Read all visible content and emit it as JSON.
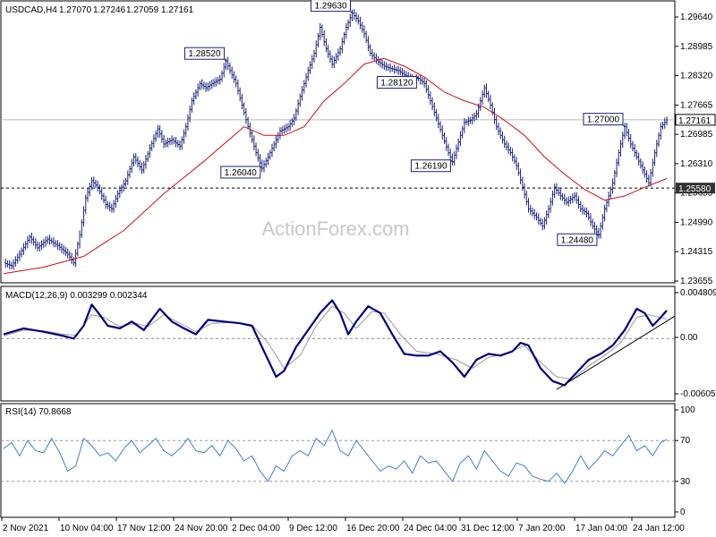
{
  "chart_data": [
    {
      "type": "candlestick",
      "title": "USDCAD,H4",
      "ohlc": [
        "1.27070",
        "1.27246",
        "1.27059",
        "1.27161"
      ],
      "watermark": "ActionForex.com",
      "y_ticks": [
        "1.29640",
        "1.28985",
        "1.28320",
        "1.27665",
        "1.26985",
        "1.26310",
        "1.25655",
        "1.24990",
        "1.24315",
        "1.23655"
      ],
      "ylim": [
        1.2345,
        1.2985
      ],
      "x_ticks": [
        "2 Nov 2021",
        "10 Nov 04:00",
        "17 Nov 12:00",
        "24 Nov 20:00",
        "2 Dec 04:00",
        "9 Dec 12:00",
        "16 Dec 20:00",
        "24 Dec 04:00",
        "31 Dec 12:00",
        "7 Jan 20:00",
        "17 Jan 04:00",
        "24 Jan 12:00"
      ],
      "current_price": "1.27161",
      "horizontal_line_label": "1.25580",
      "horizontal_line_value": 1.2558,
      "price_path": [
        [
          0,
          1.2385
        ],
        [
          4,
          1.2378
        ],
        [
          8,
          1.2405
        ],
        [
          13,
          1.2445
        ],
        [
          17,
          1.242
        ],
        [
          22,
          1.244
        ],
        [
          27,
          1.2425
        ],
        [
          32,
          1.2405
        ],
        [
          35,
          1.2385
        ],
        [
          38,
          1.245
        ],
        [
          41,
          1.2535
        ],
        [
          44,
          1.2575
        ],
        [
          47,
          1.256
        ],
        [
          51,
          1.252
        ],
        [
          54,
          1.251
        ],
        [
          57,
          1.2545
        ],
        [
          61,
          1.2575
        ],
        [
          65,
          1.263
        ],
        [
          69,
          1.26
        ],
        [
          73,
          1.265
        ],
        [
          77,
          1.2695
        ],
        [
          80,
          1.266
        ],
        [
          84,
          1.267
        ],
        [
          88,
          1.2655
        ],
        [
          91,
          1.27
        ],
        [
          94,
          1.276
        ],
        [
          98,
          1.28
        ],
        [
          101,
          1.279
        ],
        [
          104,
          1.28
        ],
        [
          108,
          1.281
        ],
        [
          111,
          1.2852
        ],
        [
          113,
          1.283
        ],
        [
          116,
          1.28
        ],
        [
          119,
          1.275
        ],
        [
          122,
          1.27
        ],
        [
          126,
          1.264
        ],
        [
          129,
          1.2604
        ],
        [
          132,
          1.263
        ],
        [
          135,
          1.266
        ],
        [
          138,
          1.269
        ],
        [
          142,
          1.27
        ],
        [
          145,
          1.272
        ],
        [
          148,
          1.277
        ],
        [
          152,
          1.283
        ],
        [
          155,
          1.287
        ],
        [
          158,
          1.293
        ],
        [
          161,
          1.288
        ],
        [
          164,
          1.2845
        ],
        [
          168,
          1.288
        ],
        [
          171,
          1.293
        ],
        [
          174,
          1.2963
        ],
        [
          177,
          1.2945
        ],
        [
          180,
          1.2915
        ],
        [
          183,
          1.287
        ],
        [
          187,
          1.285
        ],
        [
          190,
          1.284
        ],
        [
          193,
          1.2835
        ],
        [
          197,
          1.283
        ],
        [
          200,
          1.282
        ],
        [
          204,
          1.281
        ],
        [
          207,
          1.2812
        ],
        [
          210,
          1.28
        ],
        [
          213,
          1.276
        ],
        [
          216,
          1.272
        ],
        [
          219,
          1.268
        ],
        [
          222,
          1.264
        ],
        [
          224,
          1.2619
        ],
        [
          227,
          1.2665
        ],
        [
          230,
          1.271
        ],
        [
          233,
          1.2715
        ],
        [
          236,
          1.273
        ],
        [
          240,
          1.279
        ],
        [
          243,
          1.275
        ],
        [
          246,
          1.27
        ],
        [
          250,
          1.266
        ],
        [
          253,
          1.264
        ],
        [
          256,
          1.261
        ],
        [
          259,
          1.256
        ],
        [
          262,
          1.251
        ],
        [
          266,
          1.249
        ],
        [
          269,
          1.247
        ],
        [
          272,
          1.251
        ],
        [
          275,
          1.256
        ],
        [
          278,
          1.254
        ],
        [
          281,
          1.2525
        ],
        [
          285,
          1.254
        ],
        [
          288,
          1.251
        ],
        [
          291,
          1.25
        ],
        [
          294,
          1.247
        ],
        [
          297,
          1.245
        ],
        [
          300,
          1.251
        ],
        [
          304,
          1.257
        ],
        [
          307,
          1.264
        ],
        [
          310,
          1.27
        ],
        [
          313,
          1.266
        ],
        [
          316,
          1.263
        ],
        [
          319,
          1.26
        ],
        [
          322,
          1.257
        ],
        [
          325,
          1.264
        ],
        [
          328,
          1.27
        ],
        [
          331,
          1.2716
        ]
      ],
      "ma_path": [
        [
          0,
          1.236
        ],
        [
          20,
          1.2375
        ],
        [
          40,
          1.24
        ],
        [
          60,
          1.246
        ],
        [
          80,
          1.2545
        ],
        [
          100,
          1.262
        ],
        [
          120,
          1.27
        ],
        [
          130,
          1.268
        ],
        [
          140,
          1.268
        ],
        [
          150,
          1.27
        ],
        [
          160,
          1.276
        ],
        [
          170,
          1.28
        ],
        [
          180,
          1.2845
        ],
        [
          190,
          1.2858
        ],
        [
          200,
          1.284
        ],
        [
          210,
          1.2815
        ],
        [
          220,
          1.278
        ],
        [
          230,
          1.276
        ],
        [
          240,
          1.2745
        ],
        [
          250,
          1.2715
        ],
        [
          260,
          1.268
        ],
        [
          270,
          1.263
        ],
        [
          280,
          1.259
        ],
        [
          290,
          1.2555
        ],
        [
          300,
          1.253
        ],
        [
          310,
          1.254
        ],
        [
          320,
          1.256
        ],
        [
          331,
          1.258
        ]
      ],
      "annotations": [
        {
          "label": "1.28520",
          "x": 111,
          "value": 1.2852
        },
        {
          "label": "1.26040",
          "x": 129,
          "value": 1.2604
        },
        {
          "label": "1.29630",
          "x": 174,
          "value": 1.2963
        },
        {
          "label": "1.28120",
          "x": 207,
          "value": 1.2812
        },
        {
          "label": "1.26190",
          "x": 224,
          "value": 1.2619
        },
        {
          "label": "1.24480",
          "x": 297,
          "value": 1.2448
        },
        {
          "label": "1.27000",
          "x": 310,
          "value": 1.27
        }
      ],
      "color_up": "#1a237e",
      "color_ma": "#cc1111",
      "color_line_price": "#aaaaaa"
    },
    {
      "type": "line",
      "title": "MACD(12,26,9) 0.003299 0.002344",
      "y_ticks": [
        "0.004809",
        "0.00",
        "-0.00605"
      ],
      "ylim": [
        -0.0065,
        0.0054
      ],
      "zero": 0.0,
      "macd_path": [
        [
          0,
          0.0005
        ],
        [
          10,
          0.0012
        ],
        [
          20,
          0.0008
        ],
        [
          30,
          0.0003
        ],
        [
          35,
          0.0
        ],
        [
          40,
          0.0015
        ],
        [
          44,
          0.004
        ],
        [
          48,
          0.0028
        ],
        [
          52,
          0.0015
        ],
        [
          58,
          0.0012
        ],
        [
          64,
          0.002
        ],
        [
          70,
          0.001
        ],
        [
          78,
          0.0035
        ],
        [
          84,
          0.002
        ],
        [
          90,
          0.0012
        ],
        [
          96,
          0.0005
        ],
        [
          102,
          0.0022
        ],
        [
          110,
          0.002
        ],
        [
          118,
          0.0018
        ],
        [
          124,
          0.0015
        ],
        [
          130,
          -0.0015
        ],
        [
          136,
          -0.0045
        ],
        [
          140,
          -0.0038
        ],
        [
          146,
          -0.001
        ],
        [
          152,
          0.001
        ],
        [
          158,
          0.003
        ],
        [
          164,
          0.0045
        ],
        [
          168,
          0.003
        ],
        [
          172,
          0.0005
        ],
        [
          176,
          0.002
        ],
        [
          182,
          0.0038
        ],
        [
          188,
          0.003
        ],
        [
          194,
          0.0005
        ],
        [
          200,
          -0.0018
        ],
        [
          206,
          -0.002
        ],
        [
          212,
          -0.002
        ],
        [
          218,
          -0.0015
        ],
        [
          224,
          -0.0028
        ],
        [
          230,
          -0.0045
        ],
        [
          236,
          -0.0025
        ],
        [
          242,
          -0.0018
        ],
        [
          248,
          -0.002
        ],
        [
          254,
          -0.0015
        ],
        [
          258,
          -0.0005
        ],
        [
          262,
          -0.0008
        ],
        [
          268,
          -0.0035
        ],
        [
          274,
          -0.005
        ],
        [
          280,
          -0.0055
        ],
        [
          286,
          -0.004
        ],
        [
          292,
          -0.0025
        ],
        [
          298,
          -0.0018
        ],
        [
          304,
          -0.0008
        ],
        [
          310,
          0.001
        ],
        [
          316,
          0.0035
        ],
        [
          320,
          0.003
        ],
        [
          324,
          0.0015
        ],
        [
          328,
          0.0025
        ],
        [
          331,
          0.0033
        ]
      ],
      "signal_path": [
        [
          0,
          0.0003
        ],
        [
          10,
          0.001
        ],
        [
          20,
          0.0009
        ],
        [
          30,
          0.0005
        ],
        [
          36,
          0.0004
        ],
        [
          44,
          0.0028
        ],
        [
          50,
          0.0025
        ],
        [
          58,
          0.0014
        ],
        [
          66,
          0.0018
        ],
        [
          72,
          0.0014
        ],
        [
          80,
          0.0028
        ],
        [
          88,
          0.0018
        ],
        [
          96,
          0.0008
        ],
        [
          104,
          0.0018
        ],
        [
          114,
          0.0019
        ],
        [
          124,
          0.0016
        ],
        [
          132,
          -0.0005
        ],
        [
          140,
          -0.0035
        ],
        [
          148,
          -0.002
        ],
        [
          156,
          0.0015
        ],
        [
          164,
          0.0038
        ],
        [
          170,
          0.003
        ],
        [
          176,
          0.0012
        ],
        [
          184,
          0.0032
        ],
        [
          190,
          0.003
        ],
        [
          198,
          0.0005
        ],
        [
          206,
          -0.0015
        ],
        [
          216,
          -0.0018
        ],
        [
          226,
          -0.0025
        ],
        [
          234,
          -0.0035
        ],
        [
          242,
          -0.0022
        ],
        [
          252,
          -0.0017
        ],
        [
          260,
          -0.0008
        ],
        [
          268,
          -0.0028
        ],
        [
          276,
          -0.0045
        ],
        [
          284,
          -0.0048
        ],
        [
          292,
          -0.0032
        ],
        [
          300,
          -0.002
        ],
        [
          308,
          -0.0005
        ],
        [
          316,
          0.0025
        ],
        [
          322,
          0.0028
        ],
        [
          331,
          0.0023
        ]
      ],
      "trendline": [
        [
          276,
          -0.006
        ],
        [
          331,
          0.0018
        ]
      ],
      "color_macd": "#000080",
      "color_signal": "#999999"
    },
    {
      "type": "line",
      "title": "RSI(14) 70.8668",
      "y_ticks": [
        "100",
        "70",
        "30",
        "0"
      ],
      "ylim": [
        0,
        100
      ],
      "levels": [
        70,
        30
      ],
      "rsi_path": [
        [
          0,
          62
        ],
        [
          4,
          68
        ],
        [
          8,
          55
        ],
        [
          12,
          70
        ],
        [
          16,
          60
        ],
        [
          20,
          58
        ],
        [
          24,
          72
        ],
        [
          28,
          58
        ],
        [
          32,
          40
        ],
        [
          36,
          45
        ],
        [
          40,
          72
        ],
        [
          44,
          65
        ],
        [
          48,
          55
        ],
        [
          52,
          58
        ],
        [
          56,
          50
        ],
        [
          60,
          62
        ],
        [
          64,
          70
        ],
        [
          68,
          58
        ],
        [
          72,
          65
        ],
        [
          76,
          72
        ],
        [
          80,
          60
        ],
        [
          84,
          55
        ],
        [
          88,
          62
        ],
        [
          92,
          72
        ],
        [
          96,
          60
        ],
        [
          100,
          58
        ],
        [
          104,
          65
        ],
        [
          108,
          55
        ],
        [
          112,
          70
        ],
        [
          116,
          62
        ],
        [
          120,
          50
        ],
        [
          124,
          55
        ],
        [
          128,
          40
        ],
        [
          132,
          30
        ],
        [
          136,
          45
        ],
        [
          140,
          40
        ],
        [
          144,
          55
        ],
        [
          148,
          60
        ],
        [
          152,
          55
        ],
        [
          156,
          72
        ],
        [
          160,
          65
        ],
        [
          164,
          80
        ],
        [
          168,
          60
        ],
        [
          172,
          55
        ],
        [
          176,
          70
        ],
        [
          180,
          60
        ],
        [
          184,
          50
        ],
        [
          188,
          40
        ],
        [
          192,
          45
        ],
        [
          196,
          42
        ],
        [
          200,
          50
        ],
        [
          204,
          38
        ],
        [
          208,
          55
        ],
        [
          212,
          48
        ],
        [
          216,
          50
        ],
        [
          220,
          40
        ],
        [
          224,
          30
        ],
        [
          228,
          48
        ],
        [
          232,
          55
        ],
        [
          236,
          42
        ],
        [
          240,
          60
        ],
        [
          244,
          50
        ],
        [
          248,
          40
        ],
        [
          252,
          35
        ],
        [
          256,
          48
        ],
        [
          260,
          45
        ],
        [
          264,
          35
        ],
        [
          268,
          32
        ],
        [
          272,
          30
        ],
        [
          276,
          38
        ],
        [
          280,
          28
        ],
        [
          284,
          40
        ],
        [
          288,
          55
        ],
        [
          292,
          42
        ],
        [
          296,
          50
        ],
        [
          300,
          60
        ],
        [
          304,
          55
        ],
        [
          308,
          65
        ],
        [
          312,
          75
        ],
        [
          316,
          60
        ],
        [
          320,
          65
        ],
        [
          324,
          55
        ],
        [
          328,
          68
        ],
        [
          331,
          71
        ]
      ],
      "color_rsi": "#3f7fd6"
    }
  ]
}
